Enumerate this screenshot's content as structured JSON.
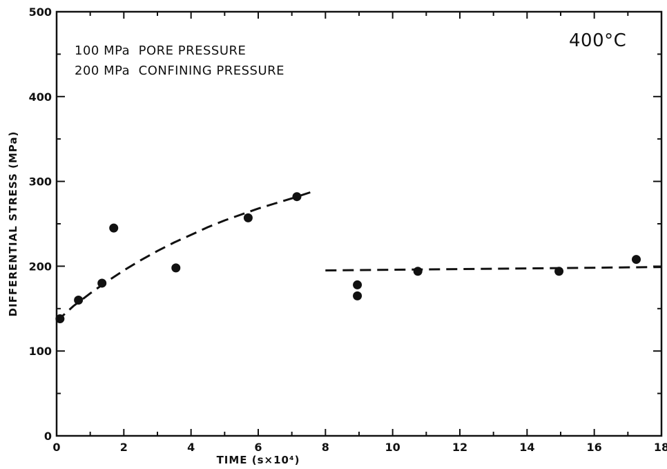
{
  "chart_data": {
    "type": "scatter",
    "title": "",
    "xlabel": "TIME (s×10⁴)",
    "ylabel": "DIFFERENTIAL STRESS (MPa)",
    "xlim": [
      0,
      18
    ],
    "ylim": [
      0,
      500
    ],
    "x_ticks": [
      0,
      2,
      4,
      6,
      8,
      10,
      12,
      14,
      16,
      18
    ],
    "y_ticks": [
      0,
      100,
      200,
      300,
      400,
      500
    ],
    "grid": false,
    "legend": null,
    "annotations": {
      "pore_pressure": "100 MPa  PORE PRESSURE",
      "confining_pressure": "200 MPa  CONFINING PRESSURE",
      "temperature": "400°C"
    },
    "series": [
      {
        "style": "points",
        "x": [
          0.1,
          0.65,
          1.35,
          1.7,
          3.55,
          5.7,
          7.15,
          8.95,
          8.95,
          10.75,
          14.95,
          17.25
        ],
        "y": [
          138,
          160,
          180,
          245,
          198,
          257,
          282,
          178,
          165,
          194,
          194,
          208
        ]
      },
      {
        "style": "dashed-fit",
        "x": [
          0,
          0.5,
          1,
          1.5,
          2,
          2.5,
          3,
          3.5,
          4,
          4.5,
          5,
          5.5,
          6,
          6.5,
          7,
          7.7
        ],
        "y": [
          135,
          153,
          168,
          182,
          195,
          207,
          218,
          228,
          237,
          246,
          254,
          261,
          268,
          274,
          280,
          289
        ]
      },
      {
        "style": "dashed-fit",
        "x": [
          8,
          18
        ],
        "y": [
          195,
          199
        ]
      }
    ]
  }
}
